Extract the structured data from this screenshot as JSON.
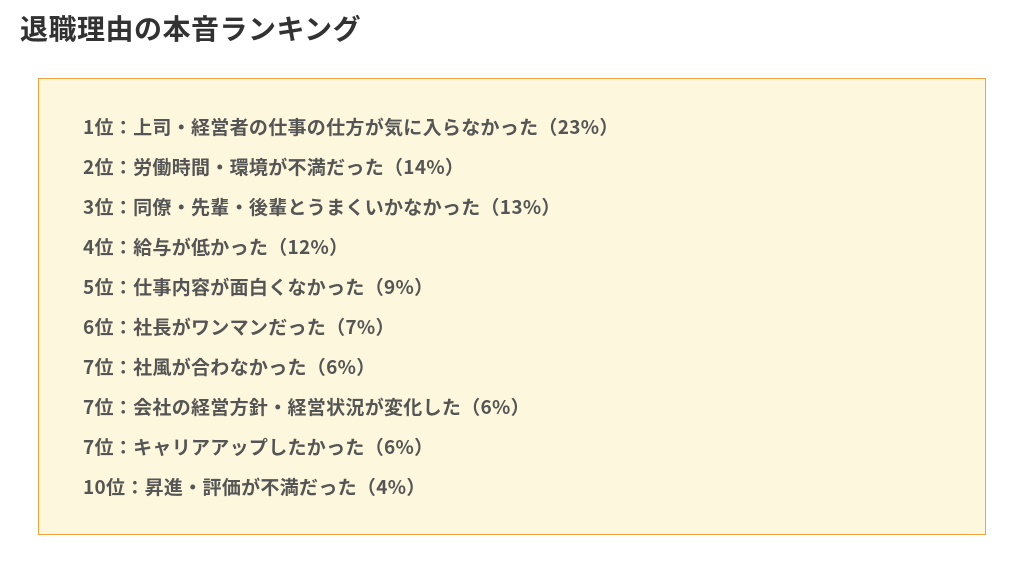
{
  "title": "退職理由の本音ランキング",
  "box": {
    "background_color": "#fdf8dd",
    "border_color": "#f0a33f",
    "text_color": "#555555"
  },
  "items": [
    {
      "rank": "1位",
      "text": "上司・経営者の仕事の仕方が気に入らなかった",
      "pct": "23%"
    },
    {
      "rank": "2位",
      "text": "労働時間・環境が不満だった",
      "pct": "14%"
    },
    {
      "rank": "3位",
      "text": "同僚・先輩・後輩とうまくいかなかった",
      "pct": "13%"
    },
    {
      "rank": "4位",
      "text": "給与が低かった",
      "pct": "12%"
    },
    {
      "rank": "5位",
      "text": "仕事内容が面白くなかった",
      "pct": "9%"
    },
    {
      "rank": "6位",
      "text": "社長がワンマンだった",
      "pct": "7%"
    },
    {
      "rank": "7位",
      "text": "社風が合わなかった",
      "pct": "6%"
    },
    {
      "rank": "7位",
      "text": "会社の経営方針・経営状況が変化した",
      "pct": "6%"
    },
    {
      "rank": "7位",
      "text": "キャリアアップしたかった",
      "pct": "6%"
    },
    {
      "rank": "10位",
      "text": "昇進・評価が不満だった",
      "pct": "4%"
    }
  ]
}
